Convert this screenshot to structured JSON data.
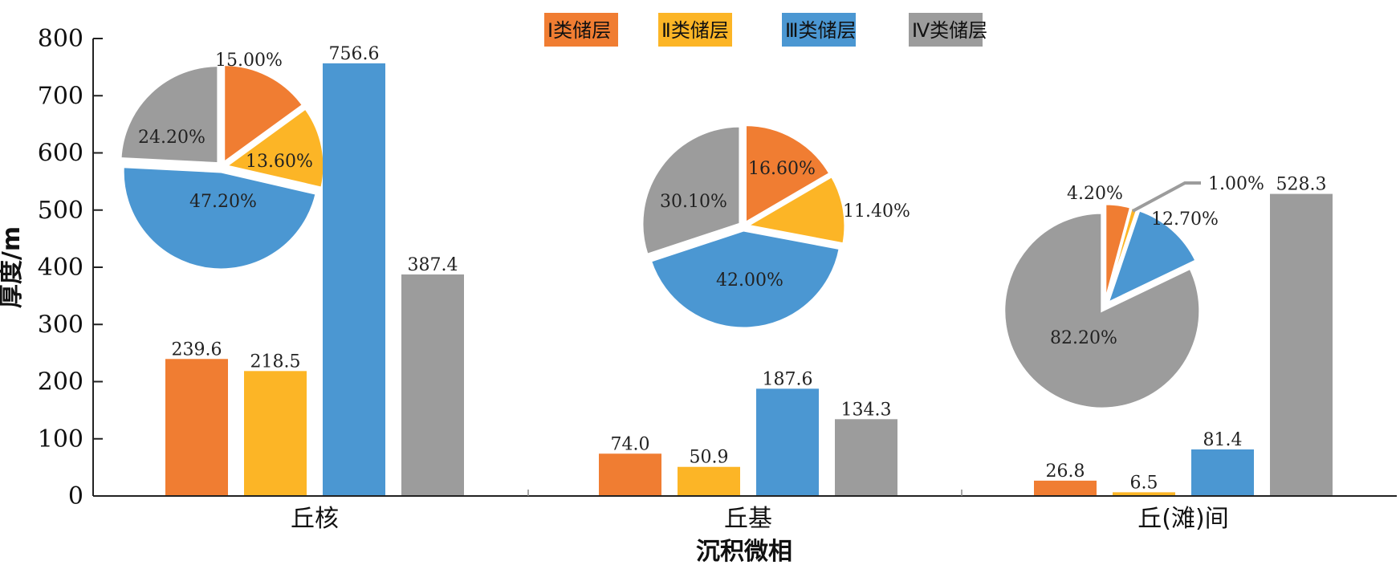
{
  "chart_data": {
    "type": "bar",
    "xlabel": "沉积微相",
    "ylabel": "厚度/m",
    "ylim": [
      0,
      800
    ],
    "yticks": [
      0,
      100,
      200,
      300,
      400,
      500,
      600,
      700,
      800
    ],
    "categories": [
      "丘核",
      "丘基",
      "丘(滩)间"
    ],
    "legend_position": "top",
    "series": [
      {
        "name": "Ⅰ类储层",
        "color": "#F07D32",
        "values": [
          239.6,
          74.0,
          26.8
        ],
        "labels": [
          "239.6",
          "74.0",
          "26.8"
        ]
      },
      {
        "name": "Ⅱ类储层",
        "color": "#FCB526",
        "values": [
          218.5,
          50.9,
          6.5
        ],
        "labels": [
          "218.5",
          "50.9",
          "6.5"
        ]
      },
      {
        "name": "Ⅲ类储层",
        "color": "#4B97D2",
        "values": [
          756.6,
          187.6,
          81.4
        ],
        "labels": [
          "756.6",
          "187.6",
          "81.4"
        ]
      },
      {
        "name": "Ⅳ类储层",
        "color": "#9C9C9C",
        "values": [
          387.4,
          134.3,
          528.3
        ],
        "labels": [
          "387.4",
          "134.3",
          "528.3"
        ]
      }
    ],
    "pies": [
      {
        "category": "丘核",
        "values": [
          15.0,
          13.6,
          47.2,
          24.2
        ],
        "labels": [
          "15.00%",
          "13.60%",
          "47.20%",
          "24.20%"
        ]
      },
      {
        "category": "丘基",
        "values": [
          16.6,
          11.4,
          42.0,
          30.1
        ],
        "labels": [
          "16.60%",
          "11.40%",
          "42.00%",
          "30.10%"
        ]
      },
      {
        "category": "丘(滩)间",
        "values": [
          4.2,
          1.0,
          12.7,
          82.2
        ],
        "labels": [
          "4.20%",
          "1.00%",
          "12.70%",
          "82.20%"
        ]
      }
    ]
  }
}
